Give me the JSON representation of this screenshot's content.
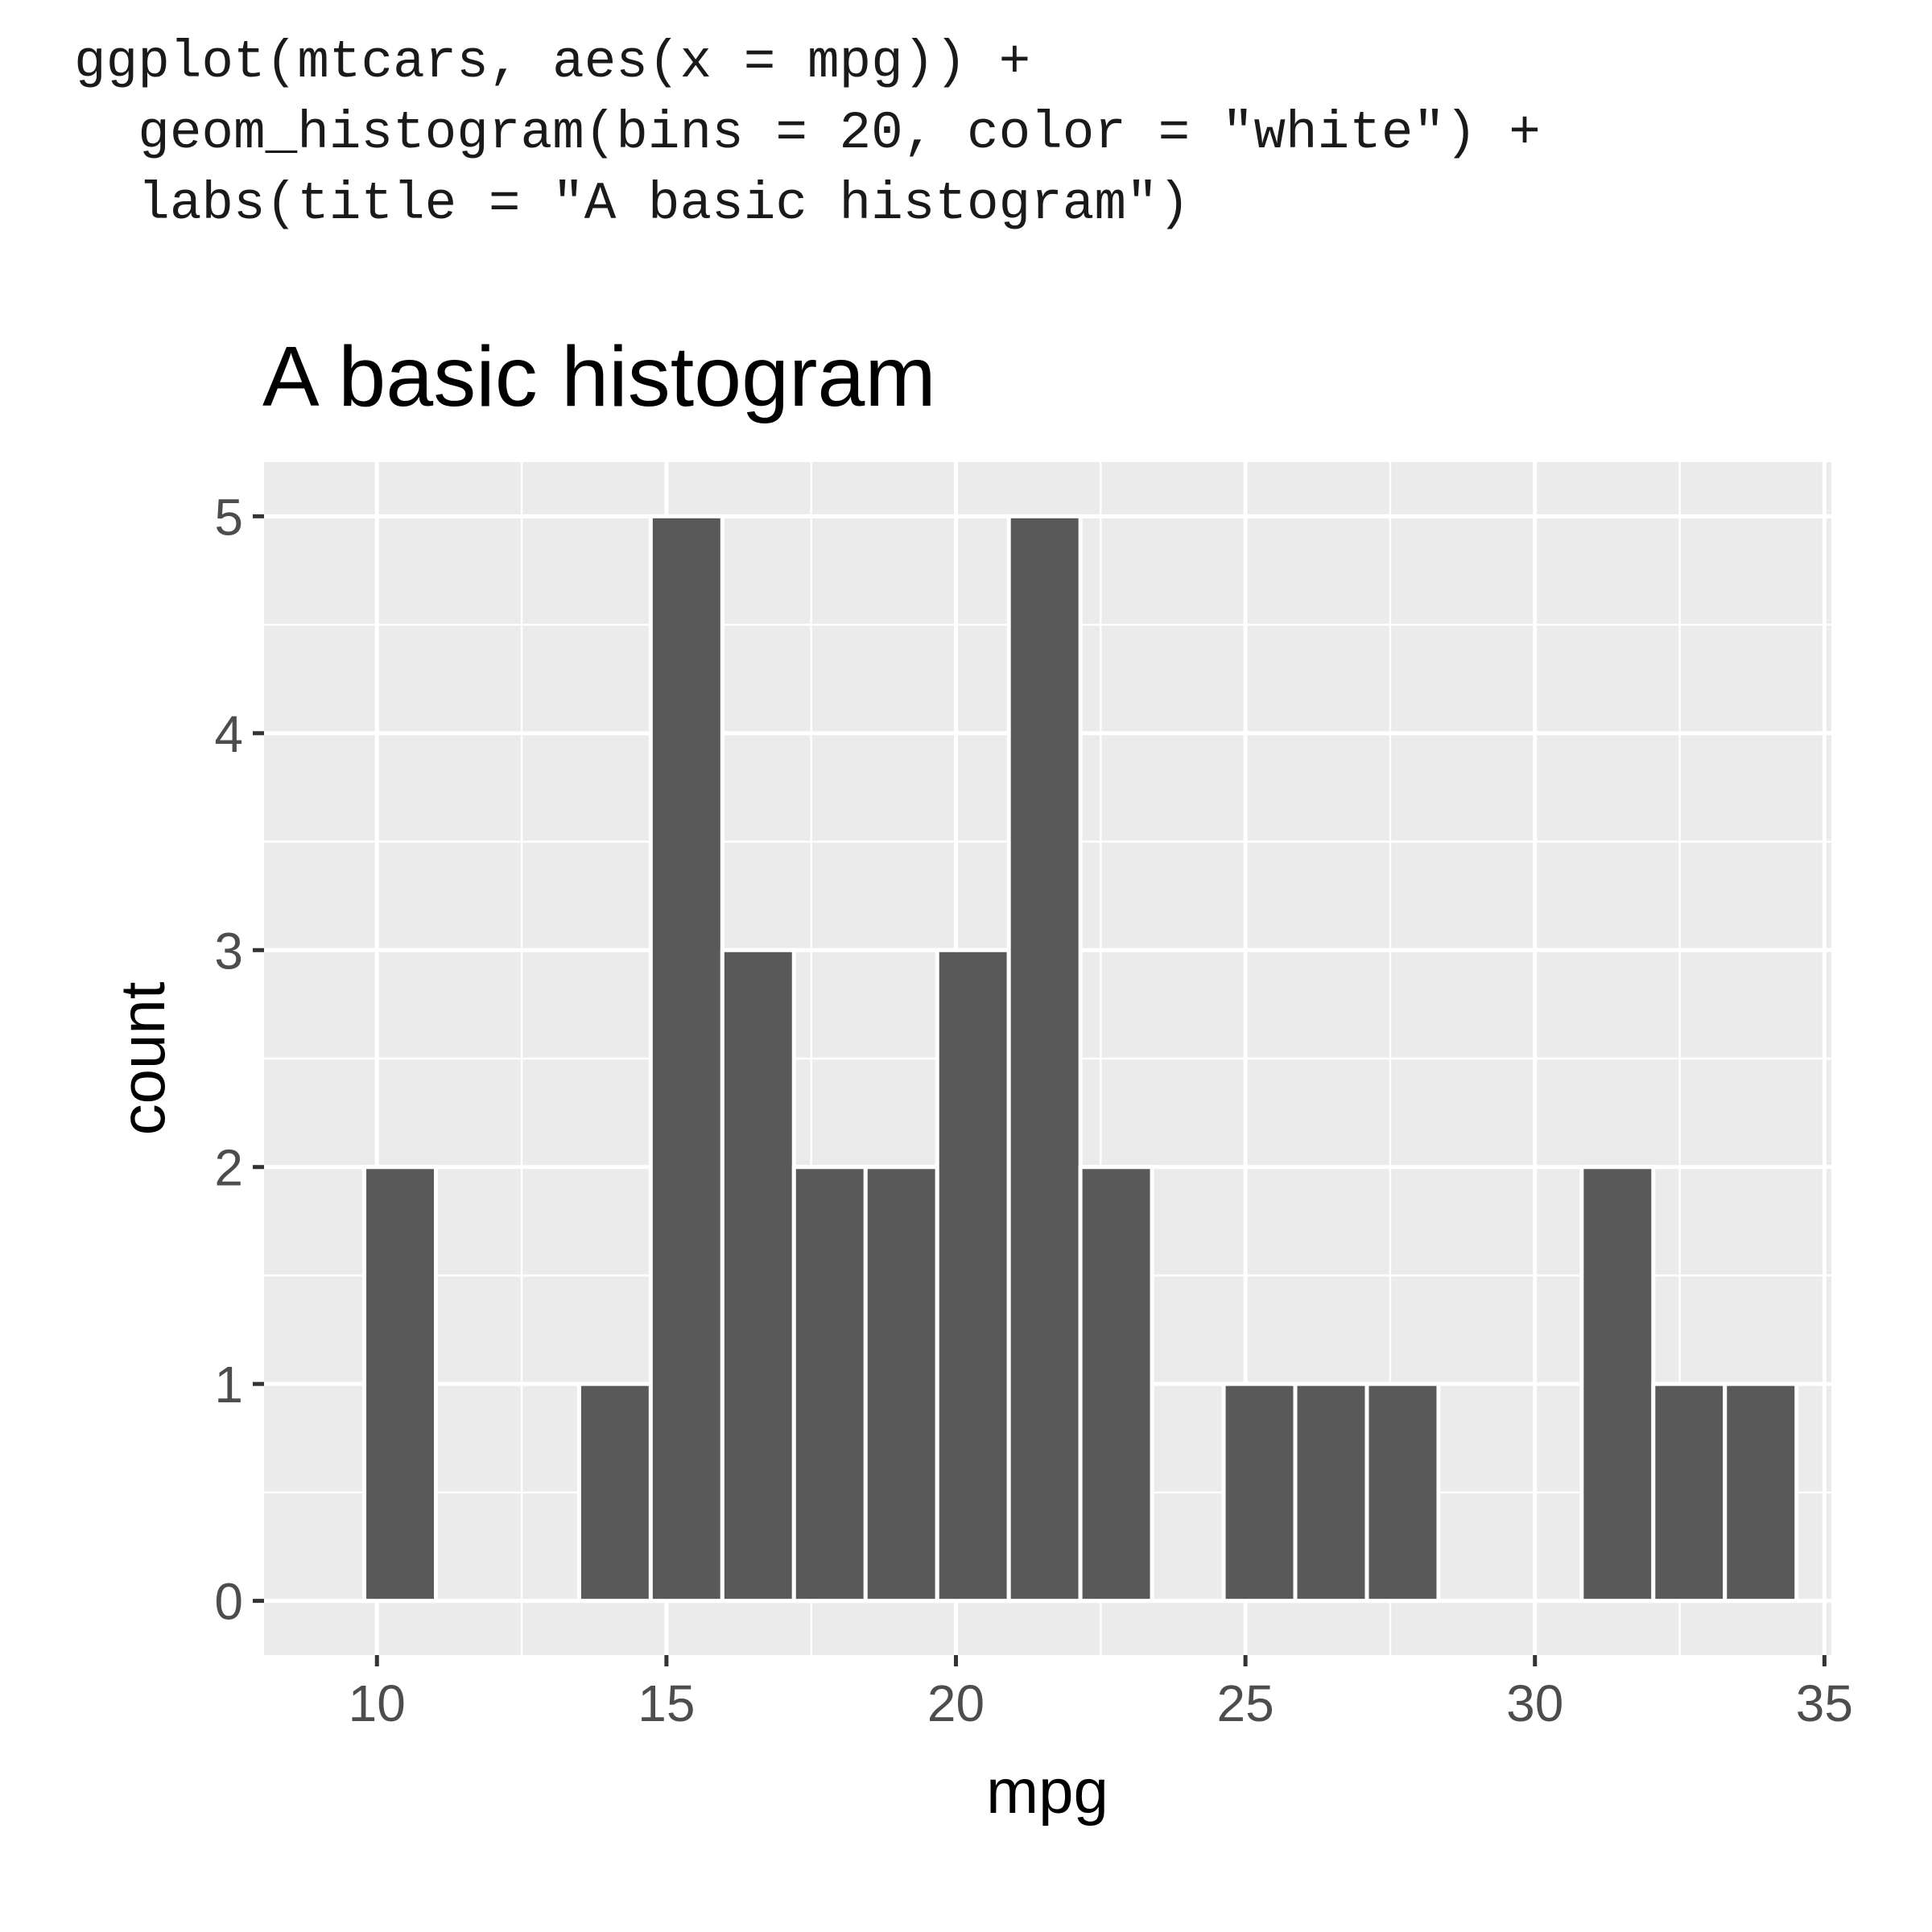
{
  "code": {
    "lines": [
      "ggplot(mtcars, aes(x = mpg)) +",
      "  geom_histogram(bins = 20, color = \"white\") +",
      "  labs(title = \"A basic histogram\")"
    ]
  },
  "chart_data": {
    "type": "bar",
    "title": "A basic histogram",
    "xlabel": "mpg",
    "ylabel": "count",
    "bins": 20,
    "bin_width": 1.2368,
    "bin_centers": [
      10.4,
      11.637,
      12.874,
      14.111,
      15.347,
      16.584,
      17.821,
      19.058,
      20.295,
      21.532,
      22.768,
      24.005,
      25.242,
      26.479,
      27.716,
      28.953,
      30.189,
      31.426,
      32.663,
      33.9
    ],
    "values": [
      2,
      0,
      0,
      1,
      5,
      3,
      2,
      2,
      3,
      5,
      2,
      0,
      1,
      1,
      1,
      0,
      0,
      2,
      1,
      1
    ],
    "xlim": [
      8.05,
      35.12
    ],
    "ylim": [
      -0.25,
      5.25
    ],
    "x_ticks": [
      10,
      15,
      20,
      25,
      30,
      35
    ],
    "x_tick_labels": [
      "10",
      "15",
      "20",
      "25",
      "30",
      "35"
    ],
    "y_ticks": [
      0,
      1,
      2,
      3,
      4,
      5
    ],
    "y_tick_labels": [
      "0",
      "1",
      "2",
      "3",
      "4",
      "5"
    ],
    "grid": true,
    "colors": {
      "bar_fill": "#595959",
      "bar_outline": "#ffffff",
      "panel_background": "#ebebeb",
      "grid": "#ffffff",
      "tick_mark": "#333333"
    }
  }
}
